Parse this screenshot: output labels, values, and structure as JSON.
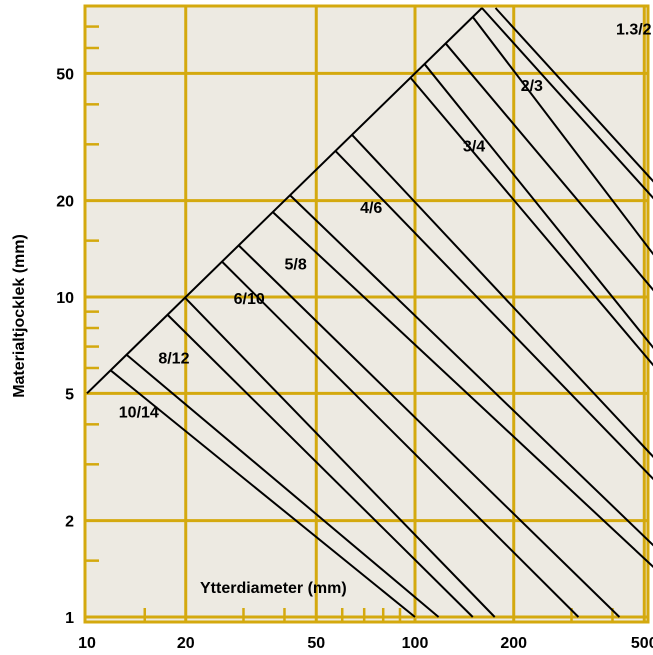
{
  "chart_data": {
    "type": "line",
    "title": "",
    "xlabel": "Ytterdiameter (mm)",
    "ylabel": "Materialtjocklek (mm)",
    "xscale": "log",
    "yscale": "log",
    "xlim": [
      10,
      600
    ],
    "ylim": [
      1,
      80
    ],
    "grid": true,
    "x_ticks": [
      10,
      20,
      50,
      100,
      200,
      500
    ],
    "y_ticks": [
      1,
      2,
      5,
      10,
      20,
      50
    ],
    "x_minor_ticks": [
      15,
      30,
      40,
      60,
      70,
      80,
      90,
      300,
      400
    ],
    "y_minor_ticks": [
      1.5,
      3,
      4,
      6,
      7,
      8,
      9,
      15,
      30,
      40,
      60,
      70
    ],
    "envelope": {
      "x": [
        10,
        160
      ],
      "y": [
        5,
        80
      ]
    },
    "series": [
      {
        "name": "10/14",
        "label_at": [
          12.5,
          4.2
        ],
        "lines": [
          {
            "x": [
              11.8,
              100
            ],
            "y": [
              5.9,
              1
            ]
          },
          {
            "x": [
              13.2,
              118
            ],
            "y": [
              6.6,
              1
            ]
          }
        ]
      },
      {
        "name": "8/12",
        "label_at": [
          16.5,
          6.2
        ],
        "lines": [
          {
            "x": [
              17.6,
              150
            ],
            "y": [
              8.8,
              1
            ]
          },
          {
            "x": [
              19.9,
              175
            ],
            "y": [
              9.95,
              1
            ]
          }
        ]
      },
      {
        "name": "6/10",
        "label_at": [
          28,
          9.5
        ],
        "lines": [
          {
            "x": [
              25.8,
              315
            ],
            "y": [
              12.9,
              1
            ]
          },
          {
            "x": [
              29,
              420
            ],
            "y": [
              14.5,
              1
            ]
          }
        ]
      },
      {
        "name": "5/8",
        "label_at": [
          40,
          12.2
        ],
        "lines": [
          {
            "x": [
              36.9,
              600
            ],
            "y": [
              18.4,
              1.28
            ]
          },
          {
            "x": [
              41.6,
              600
            ],
            "y": [
              20.8,
              1.49
            ]
          }
        ]
      },
      {
        "name": "4/6",
        "label_at": [
          68,
          18.3
        ],
        "lines": [
          {
            "x": [
              57.2,
              600
            ],
            "y": [
              28.6,
              2.38
            ]
          },
          {
            "x": [
              64.3,
              600
            ],
            "y": [
              32.1,
              2.78
            ]
          }
        ]
      },
      {
        "name": "3/4",
        "label_at": [
          140,
          28.5
        ],
        "lines": [
          {
            "x": [
              97,
              600
            ],
            "y": [
              48.4,
              5.3
            ]
          },
          {
            "x": [
              107,
              600
            ],
            "y": [
              53.4,
              5.97
            ]
          }
        ]
      },
      {
        "name": "2/3",
        "label_at": [
          210,
          44
        ],
        "lines": [
          {
            "x": [
              124,
              600
            ],
            "y": [
              62,
              9.1
            ]
          },
          {
            "x": [
              150,
              600
            ],
            "y": [
              75,
              11.6
            ]
          }
        ]
      },
      {
        "name": "1.3/2",
        "label_at": [
          410,
          66
        ],
        "lines": [
          {
            "x": [
              160,
              600
            ],
            "y": [
              80,
              17.8
            ]
          },
          {
            "x": [
              176,
              600
            ],
            "y": [
              80,
              20.1
            ]
          }
        ]
      }
    ]
  },
  "colors": {
    "background": "#EDEAE2",
    "grid": "#D4A90E",
    "lines": "#000000"
  }
}
